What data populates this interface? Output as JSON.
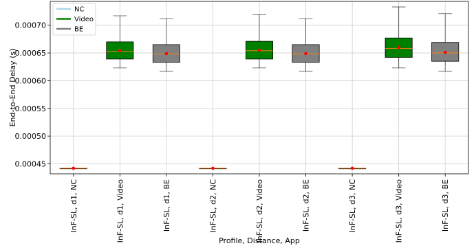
{
  "chart_data": {
    "type": "box",
    "xlabel": "Profile, Distance, App",
    "ylabel": "End-to-End Delay (s)",
    "ylim": [
      0.000432,
      0.000743
    ],
    "yticks": [
      0.00045,
      0.0005,
      0.00055,
      0.0006,
      0.00065,
      0.0007
    ],
    "ytick_labels": [
      "0.00045",
      "0.00050",
      "0.00055",
      "0.00060",
      "0.00065",
      "0.00070"
    ],
    "grid": true,
    "legend_position": "top-left",
    "legend": [
      {
        "name": "NC",
        "color": "#add8e6"
      },
      {
        "name": "Video",
        "color": "#008000"
      },
      {
        "name": "BE",
        "color": "#808080"
      }
    ],
    "categories": [
      "InF-SL, d1, NC",
      "InF-SL, d1, Video",
      "InF-SL, d1, BE",
      "InF-SL, d2, NC",
      "InF-SL, d2, Video",
      "InF-SL, d2, BE",
      "InF-SL, d3, NC",
      "InF-SL, d3, Video",
      "InF-SL, d3, BE"
    ],
    "boxes": [
      {
        "app": "NC",
        "color": "#add8e6",
        "whisker_low": 0.000442,
        "q1": 0.000442,
        "median": 0.000442,
        "q3": 0.000442,
        "whisker_high": 0.000442,
        "mean": 0.000442
      },
      {
        "app": "Video",
        "color": "#008000",
        "whisker_low": 0.000623,
        "q1": 0.000639,
        "median": 0.000653,
        "q3": 0.00067,
        "whisker_high": 0.000717,
        "mean": 0.000654
      },
      {
        "app": "BE",
        "color": "#808080",
        "whisker_low": 0.000617,
        "q1": 0.000633,
        "median": 0.000648,
        "q3": 0.000665,
        "whisker_high": 0.000712,
        "mean": 0.000649
      },
      {
        "app": "NC",
        "color": "#add8e6",
        "whisker_low": 0.000442,
        "q1": 0.000442,
        "median": 0.000442,
        "q3": 0.000442,
        "whisker_high": 0.000442,
        "mean": 0.000442
      },
      {
        "app": "Video",
        "color": "#008000",
        "whisker_low": 0.000623,
        "q1": 0.000639,
        "median": 0.000654,
        "q3": 0.000671,
        "whisker_high": 0.000719,
        "mean": 0.000655
      },
      {
        "app": "BE",
        "color": "#808080",
        "whisker_low": 0.000617,
        "q1": 0.000633,
        "median": 0.000648,
        "q3": 0.000665,
        "whisker_high": 0.000712,
        "mean": 0.000649
      },
      {
        "app": "NC",
        "color": "#add8e6",
        "whisker_low": 0.000442,
        "q1": 0.000442,
        "median": 0.000442,
        "q3": 0.000442,
        "whisker_high": 0.000442,
        "mean": 0.000442
      },
      {
        "app": "Video",
        "color": "#008000",
        "whisker_low": 0.000623,
        "q1": 0.000642,
        "median": 0.000658,
        "q3": 0.000677,
        "whisker_high": 0.000733,
        "mean": 0.00066
      },
      {
        "app": "BE",
        "color": "#808080",
        "whisker_low": 0.000617,
        "q1": 0.000635,
        "median": 0.00065,
        "q3": 0.000669,
        "whisker_high": 0.000721,
        "mean": 0.000651
      }
    ],
    "median_color": "#ff7f0e",
    "mean_marker_color": "#ff0000"
  }
}
